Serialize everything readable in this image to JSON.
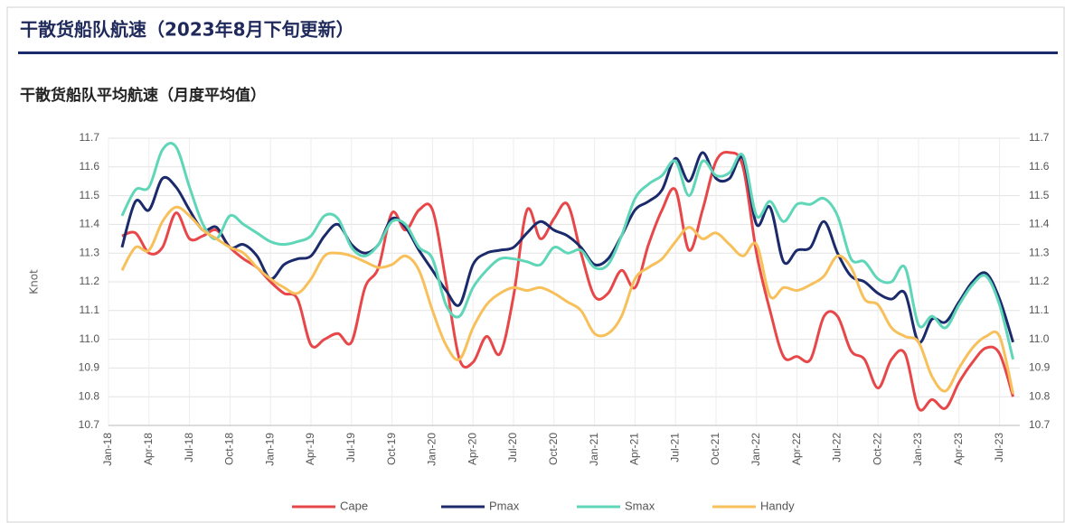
{
  "chart_data": {
    "type": "line",
    "title": "干散货船队航速（2023年8月下旬更新）",
    "subtitle": "干散货船队平均航速（月度平均值）",
    "y_label": "Knot",
    "ylim": [
      10.7,
      11.7
    ],
    "yticks": [
      10.7,
      10.8,
      10.9,
      {
        "value": 11,
        "label": "11.0"
      },
      11.1,
      11.2,
      11.3,
      11.4,
      11.5,
      11.6,
      11.7
    ],
    "grid": true,
    "legend": "bottom",
    "categories": [
      "Jan-18",
      null,
      null,
      "Apr-18",
      null,
      null,
      "Jul-18",
      null,
      null,
      "Oct-18",
      null,
      null,
      "Jan-19",
      null,
      null,
      "Apr-19",
      null,
      null,
      "Jul-19",
      null,
      null,
      "Oct-19",
      null,
      null,
      "Jan-20",
      null,
      null,
      "Apr-20",
      null,
      null,
      "Jul-20",
      null,
      null,
      "Oct-20",
      null,
      null,
      "Jan-21",
      null,
      null,
      "Apr-21",
      null,
      null,
      "Jul-21",
      null,
      null,
      "Oct-21",
      null,
      null,
      "Jan-22",
      null,
      null,
      "Apr-22",
      null,
      null,
      "Jul-22",
      null,
      null,
      "Oct-22",
      null,
      null,
      "Jan-23",
      null,
      null,
      "Apr-23",
      null,
      null,
      "Jul-23",
      null
    ],
    "series": [
      {
        "name": "Cape",
        "color": "#e8474a",
        "values": [
          null,
          11.36,
          11.37,
          11.3,
          11.32,
          11.44,
          11.35,
          11.36,
          11.38,
          11.32,
          11.28,
          11.25,
          11.2,
          11.16,
          11.14,
          10.98,
          11.0,
          11.02,
          10.99,
          11.18,
          11.25,
          11.44,
          11.38,
          11.45,
          11.45,
          11.2,
          10.93,
          10.92,
          11.01,
          10.95,
          11.15,
          11.45,
          11.35,
          11.42,
          11.47,
          11.3,
          11.15,
          11.16,
          11.24,
          11.18,
          11.33,
          11.45,
          11.52,
          11.31,
          11.45,
          11.62,
          11.65,
          11.6,
          11.3,
          11.1,
          10.94,
          10.94,
          10.93,
          11.08,
          11.08,
          10.96,
          10.93,
          10.83,
          10.93,
          10.95,
          10.76,
          10.79,
          10.76,
          10.85,
          10.92,
          10.97,
          10.95,
          10.8
        ]
      },
      {
        "name": "Pmax",
        "color": "#1b2a6b",
        "values": [
          null,
          11.32,
          11.48,
          11.45,
          11.56,
          11.53,
          11.45,
          11.38,
          11.39,
          11.32,
          11.33,
          11.29,
          11.21,
          11.26,
          11.28,
          11.29,
          11.36,
          11.4,
          11.33,
          11.3,
          11.33,
          11.42,
          11.39,
          11.31,
          11.24,
          11.17,
          11.12,
          11.26,
          11.3,
          11.31,
          11.32,
          11.37,
          11.41,
          11.38,
          11.36,
          11.32,
          11.26,
          11.28,
          11.36,
          11.45,
          11.48,
          11.52,
          11.63,
          11.55,
          11.65,
          11.56,
          11.56,
          11.63,
          11.4,
          11.46,
          11.27,
          11.31,
          11.32,
          11.41,
          11.3,
          11.22,
          11.2,
          11.16,
          11.14,
          11.16,
          10.99,
          11.07,
          11.06,
          11.13,
          11.2,
          11.23,
          11.14,
          10.99
        ]
      },
      {
        "name": "Smax",
        "color": "#5fd6b8",
        "values": [
          null,
          11.43,
          11.52,
          11.53,
          11.66,
          11.67,
          11.53,
          11.4,
          11.35,
          11.43,
          11.4,
          11.37,
          11.34,
          11.33,
          11.34,
          11.36,
          11.43,
          11.42,
          11.32,
          11.29,
          11.33,
          11.41,
          11.4,
          11.32,
          11.28,
          11.12,
          11.08,
          11.18,
          11.24,
          11.28,
          11.28,
          11.27,
          11.26,
          11.32,
          11.3,
          11.31,
          11.25,
          11.26,
          11.36,
          11.49,
          11.54,
          11.57,
          11.62,
          11.5,
          11.62,
          11.57,
          11.58,
          11.64,
          11.43,
          11.48,
          11.41,
          11.47,
          11.47,
          11.49,
          11.43,
          11.28,
          11.27,
          11.21,
          11.2,
          11.25,
          11.05,
          11.08,
          11.04,
          11.12,
          11.19,
          11.22,
          11.12,
          10.93
        ]
      },
      {
        "name": "Handy",
        "color": "#f7c05a",
        "values": [
          null,
          11.24,
          11.32,
          11.31,
          11.41,
          11.46,
          11.43,
          11.38,
          11.35,
          11.32,
          11.3,
          11.25,
          11.21,
          11.18,
          11.16,
          11.21,
          11.29,
          11.3,
          11.29,
          11.27,
          11.25,
          11.26,
          11.29,
          11.24,
          11.1,
          10.98,
          10.93,
          11.04,
          11.12,
          11.16,
          11.18,
          11.17,
          11.18,
          11.16,
          11.13,
          11.1,
          11.02,
          11.02,
          11.08,
          11.21,
          11.25,
          11.28,
          11.34,
          11.39,
          11.35,
          11.37,
          11.33,
          11.29,
          11.33,
          11.15,
          11.18,
          11.17,
          11.19,
          11.22,
          11.29,
          11.25,
          11.14,
          11.12,
          11.04,
          11.01,
          10.99,
          10.87,
          10.82,
          10.9,
          10.97,
          11.01,
          11.01,
          10.81
        ]
      }
    ]
  }
}
